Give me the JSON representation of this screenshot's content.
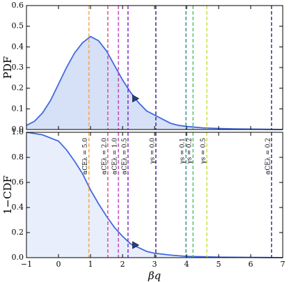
{
  "chart_data": [
    {
      "type": "line",
      "ylabel": "PDF",
      "x": [
        -1,
        -0.75,
        -0.5,
        -0.25,
        0,
        0.25,
        0.5,
        0.75,
        1.0,
        1.25,
        1.5,
        1.75,
        2.0,
        2.25,
        2.5,
        2.75,
        3.0,
        3.25,
        3.5,
        3.75,
        4.0,
        4.5,
        5.0,
        5.5,
        6.0,
        6.5,
        7.0
      ],
      "series": [
        {
          "color": "#4169e1",
          "fill": "#d6e0f7",
          "values": [
            0.02,
            0.04,
            0.08,
            0.14,
            0.22,
            0.3,
            0.37,
            0.42,
            0.45,
            0.43,
            0.38,
            0.31,
            0.24,
            0.18,
            0.13,
            0.09,
            0.07,
            0.05,
            0.03,
            0.02,
            0.015,
            0.008,
            0.005,
            0.003,
            0.002,
            0.001,
            0.0
          ]
        }
      ],
      "marker": {
        "x": 2.4,
        "y": 0.15,
        "color": "#27408b"
      },
      "vlines": [
        {
          "x": 0.95,
          "color": "#f4a340"
        },
        {
          "x": 1.54,
          "color": "#e0457b"
        },
        {
          "x": 1.87,
          "color": "#c03ab5"
        },
        {
          "x": 2.17,
          "color": "#7a1fd1"
        },
        {
          "x": 3.04,
          "color": "#2e1a87"
        },
        {
          "x": 3.98,
          "color": "#2a8c8c"
        },
        {
          "x": 4.2,
          "color": "#55b96a"
        },
        {
          "x": 4.63,
          "color": "#c4de3a"
        },
        {
          "x": 6.65,
          "color": "#1f2a80"
        }
      ],
      "xlim": [
        -1,
        7
      ],
      "xticks": [
        -1,
        0,
        1,
        2,
        3,
        4,
        5,
        6,
        7
      ],
      "ylim": [
        0,
        0.6
      ],
      "yticks": [
        {
          "value": 0,
          "label": "0.0"
        },
        0.1,
        0.2,
        0.3,
        0.4,
        0.5,
        0.6
      ]
    },
    {
      "type": "line",
      "ylabel": "1−CDF",
      "xlabel": "βq",
      "x": [
        -1,
        -0.5,
        0,
        0.25,
        0.5,
        0.75,
        1.0,
        1.25,
        1.5,
        1.75,
        2.0,
        2.25,
        2.5,
        2.75,
        3.0,
        3.5,
        4.0,
        5.0,
        6.0,
        7.0
      ],
      "series": [
        {
          "color": "#4169e1",
          "fill": "#e8eefb",
          "values": [
            1.0,
            0.98,
            0.93,
            0.86,
            0.77,
            0.67,
            0.54,
            0.43,
            0.33,
            0.24,
            0.17,
            0.11,
            0.08,
            0.05,
            0.035,
            0.02,
            0.01,
            0.004,
            0.002,
            0.0
          ]
        }
      ],
      "marker": {
        "x": 2.4,
        "y": 0.1,
        "color": "#27408b"
      },
      "vlines": [
        {
          "x": 0.95,
          "color": "#f4a340",
          "label": "αCEλ = 5.0"
        },
        {
          "x": 1.54,
          "color": "#e0457b",
          "label": "αCEλ = 2.0"
        },
        {
          "x": 1.87,
          "color": "#c03ab5",
          "label": "αCEλ = 1.0"
        },
        {
          "x": 2.17,
          "color": "#7a1fd1",
          "label": "αCEλ = 0.5"
        },
        {
          "x": 3.04,
          "color": "#2e1a87",
          "label": "γs = 0.0"
        },
        {
          "x": 3.98,
          "color": "#2a8c8c",
          "label": "γs = 0.1"
        },
        {
          "x": 4.2,
          "color": "#55b96a",
          "label": "γs = 0.2"
        },
        {
          "x": 4.63,
          "color": "#c4de3a",
          "label": "γs = 0.5"
        },
        {
          "x": 6.65,
          "color": "#1f2a80",
          "label": "αCEλ = 0.2"
        }
      ],
      "xlim": [
        -1,
        7
      ],
      "xticks": [
        {
          "value": -1,
          "label": "−1"
        },
        0,
        1,
        2,
        3,
        4,
        5,
        6,
        7
      ],
      "ylim": [
        0,
        1.0
      ],
      "yticks": [
        {
          "value": 0,
          "label": "0.0"
        },
        0.2,
        0.4,
        0.6,
        0.8,
        {
          "value": 1.0,
          "label": "1.0"
        }
      ]
    }
  ]
}
